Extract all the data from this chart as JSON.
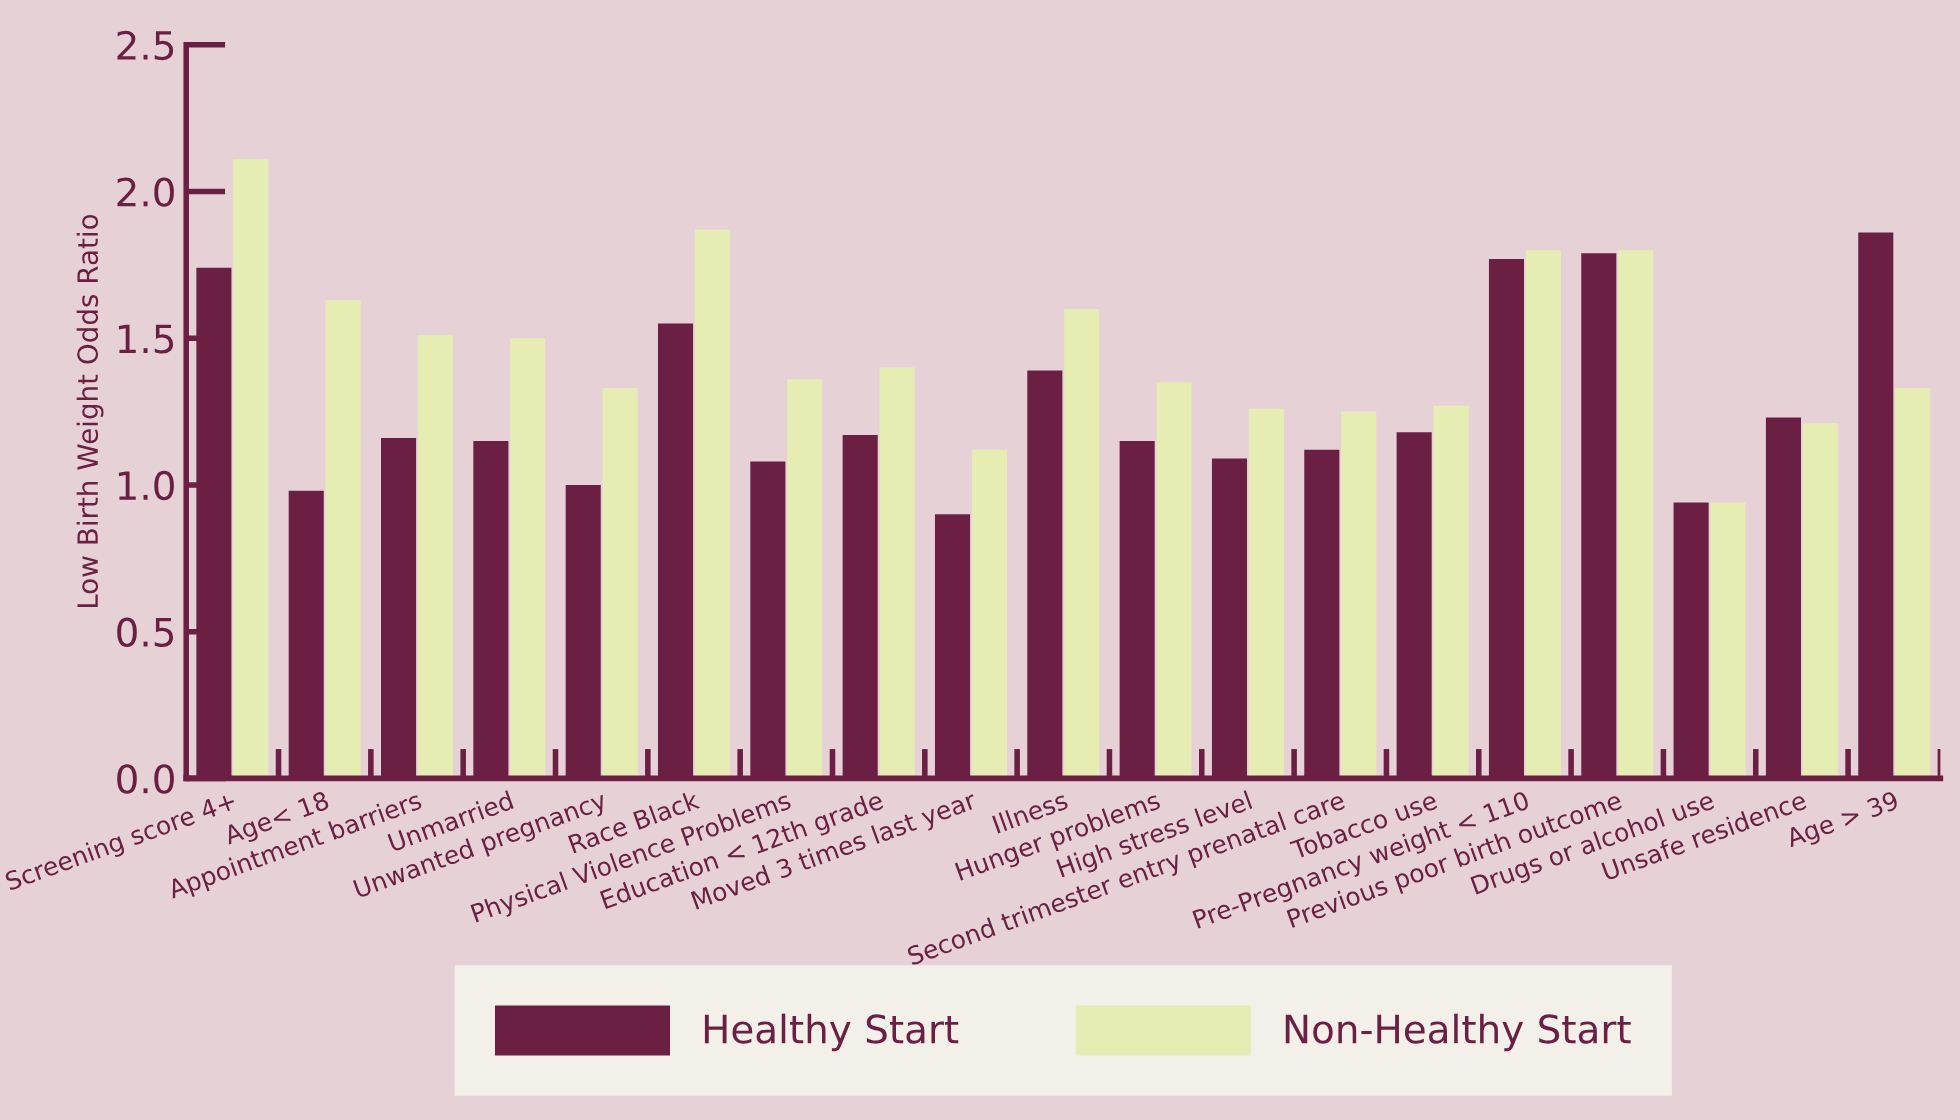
{
  "chart_data": {
    "type": "bar",
    "ylabel": "Low Birth Weight Odds Ratio",
    "categories": [
      "Screening score 4+",
      "Age< 18",
      "Appointment barriers",
      "Unmarried",
      "Unwanted pregnancy",
      "Race Black",
      "Physical Violence Problems",
      "Education < 12th grade",
      "Moved 3 times last year",
      "Illness",
      "Hunger problems",
      "High stress level",
      "Second trimester entry prenatal care",
      "Tobacco use",
      "Pre-Pregnancy weight < 110",
      "Previous poor birth outcome",
      "Drugs or alcohol use",
      "Unsafe residence",
      "Age > 39"
    ],
    "series": [
      {
        "name": "Healthy Start",
        "color": "#6b2043",
        "values": [
          1.74,
          0.98,
          1.16,
          1.15,
          1.0,
          1.55,
          1.08,
          1.17,
          0.9,
          1.39,
          1.15,
          1.09,
          1.12,
          1.18,
          1.77,
          1.79,
          0.94,
          1.23,
          1.86
        ]
      },
      {
        "name": "Non-Healthy Start",
        "color": "#e6edb3",
        "values": [
          2.11,
          1.63,
          1.51,
          1.5,
          1.33,
          1.87,
          1.36,
          1.4,
          1.12,
          1.6,
          1.35,
          1.26,
          1.25,
          1.27,
          1.8,
          1.8,
          0.94,
          1.21,
          1.33
        ]
      }
    ],
    "ylim": [
      0,
      2.5
    ],
    "yticks": [
      {
        "value": 0,
        "label": "0.0"
      },
      {
        "value": 0.5,
        "label": "0.5"
      },
      {
        "value": 1,
        "label": "1.0"
      },
      {
        "value": 1.5,
        "label": "1.5"
      },
      {
        "value": 2,
        "label": "2.0"
      },
      {
        "value": 2.5,
        "label": "2.5"
      }
    ],
    "grid": false,
    "legend": "bottom"
  }
}
